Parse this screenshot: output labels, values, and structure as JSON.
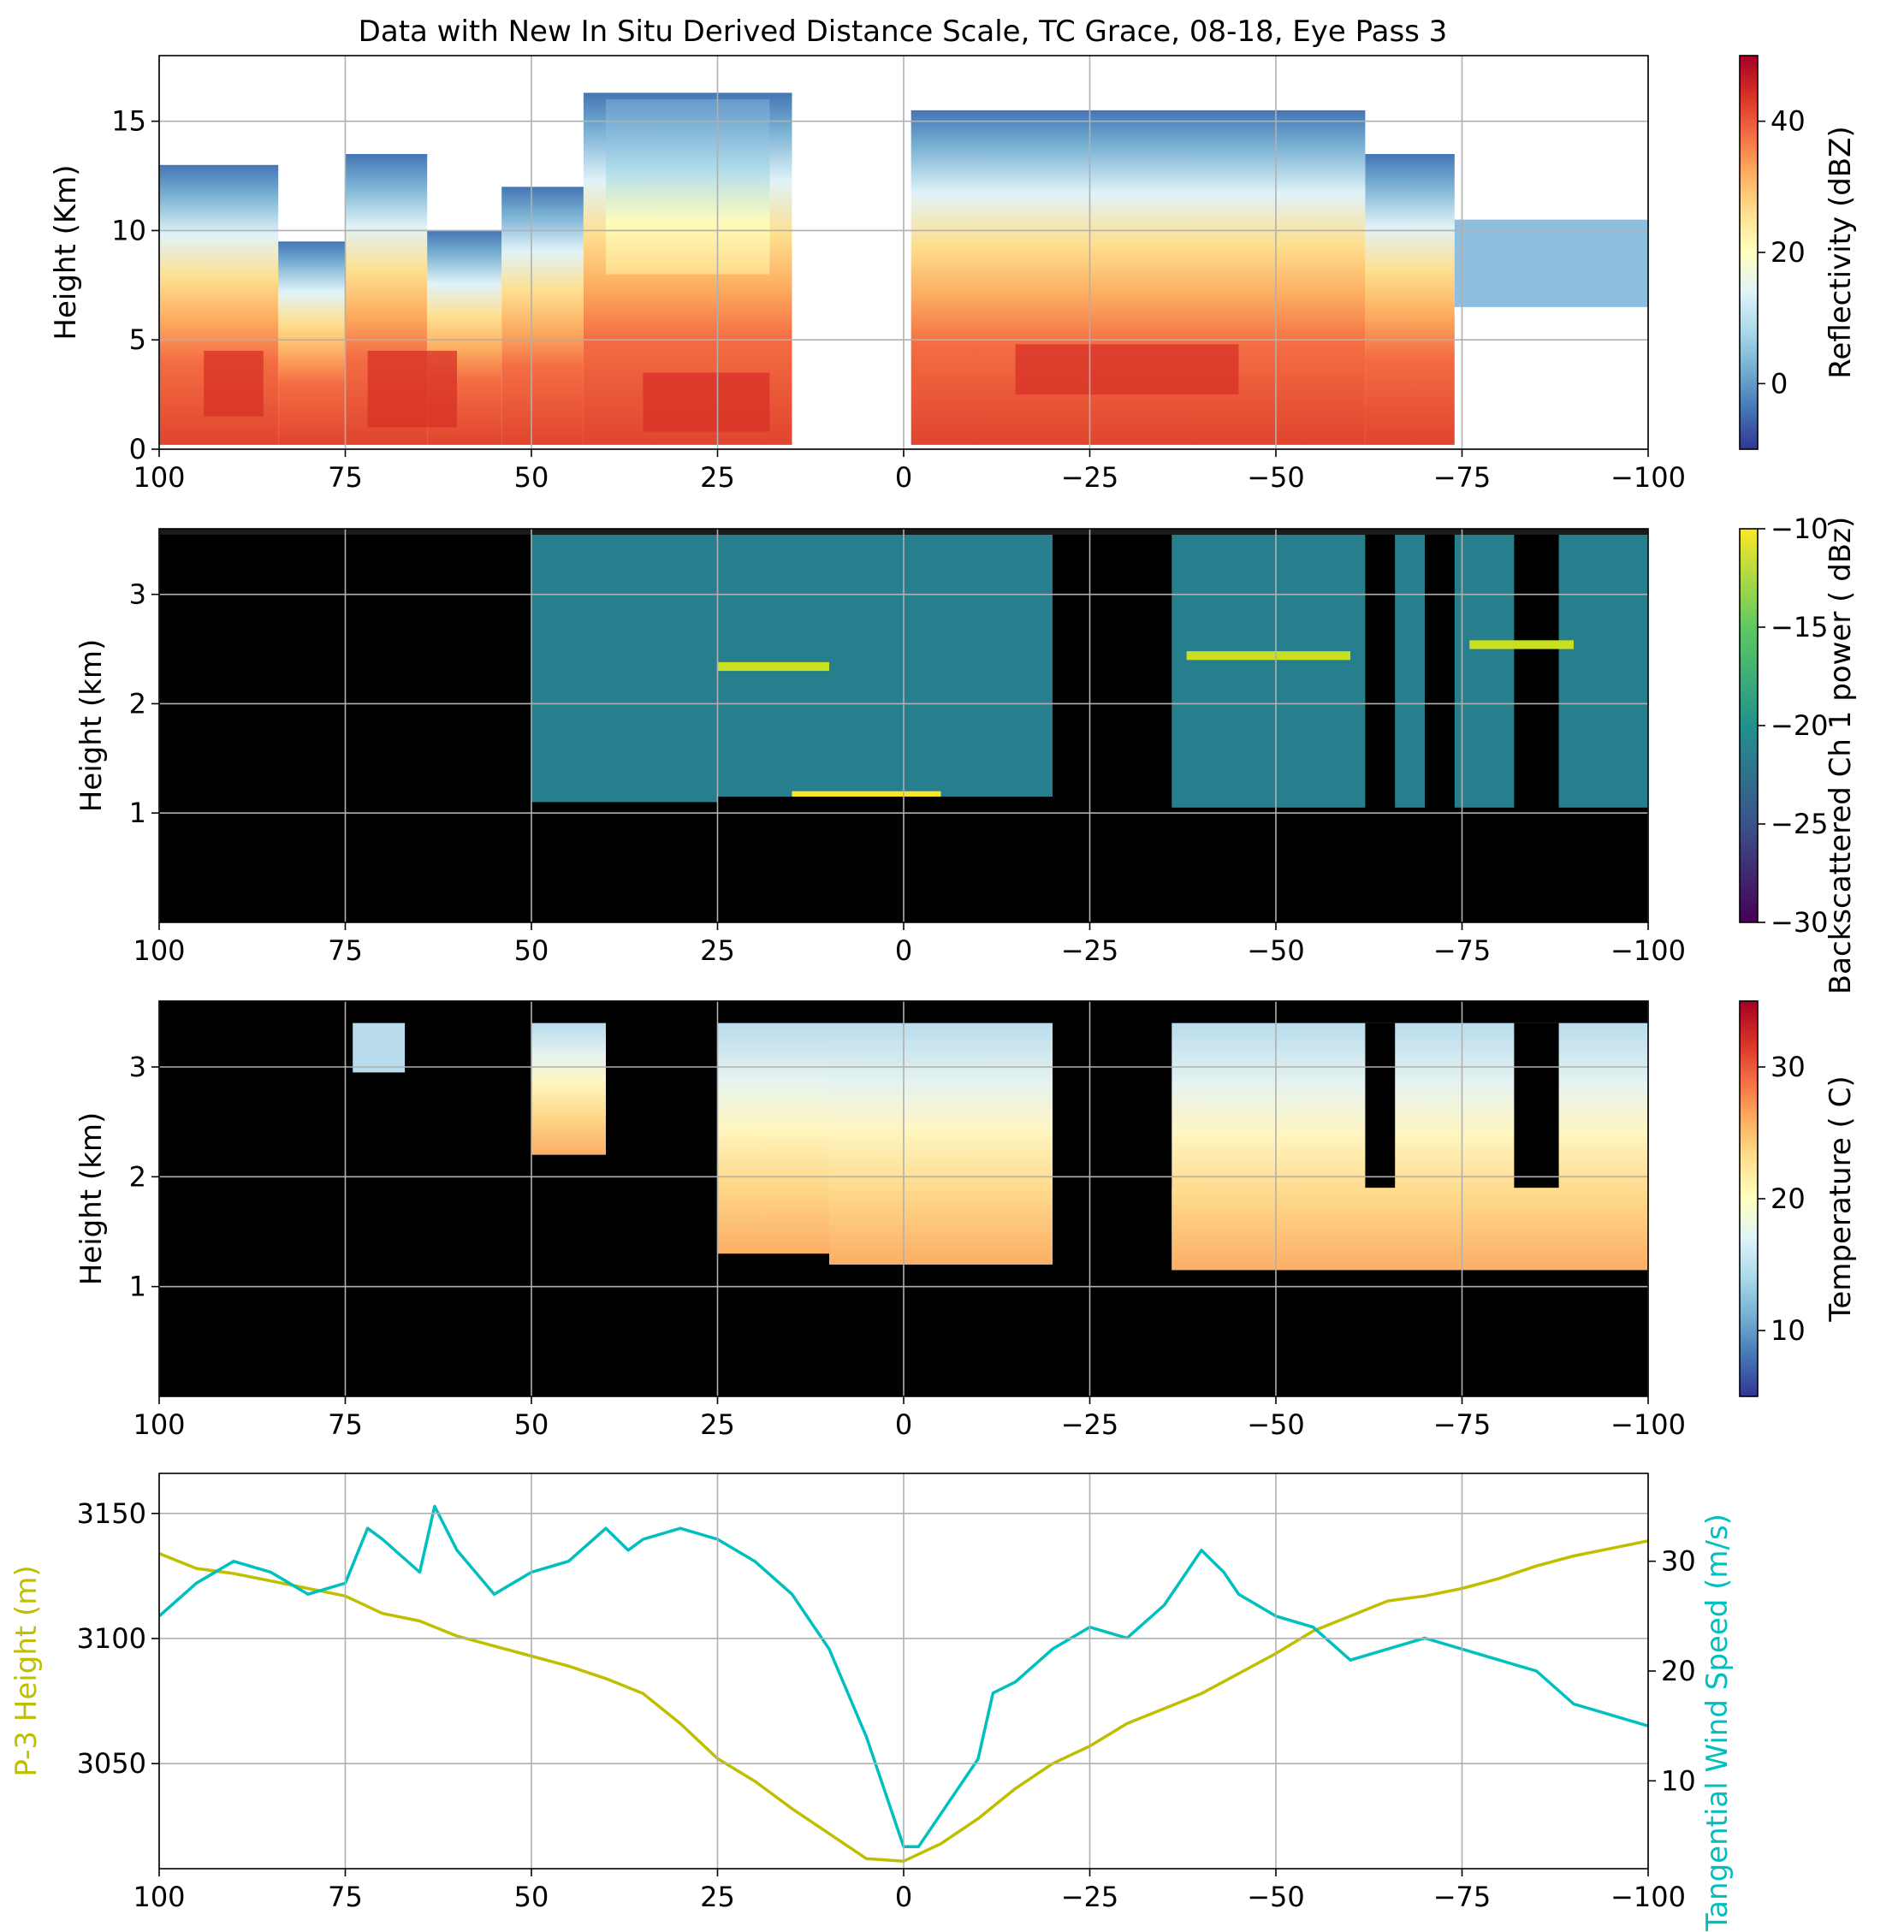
{
  "chart_data": [
    {
      "type": "heatmap",
      "title": "Data with New In Situ Derived Distance Scale, TC Grace, 08-18, Eye Pass 3",
      "ylabel": "Height (Km)",
      "xlim": [
        100,
        -100
      ],
      "ylim": [
        0,
        18
      ],
      "xticks": [
        "100",
        "75",
        "50",
        "25",
        "0",
        "−25",
        "−50",
        "−75",
        "−100"
      ],
      "yticks": [
        "0",
        "5",
        "10",
        "15"
      ],
      "ytick_values": [
        0,
        5,
        10,
        15
      ],
      "colorbar": {
        "label": "Reflectivity (dBZ)",
        "range": [
          -10,
          50
        ],
        "ticks": [
          "0",
          "20",
          "40"
        ],
        "tick_values": [
          0,
          20,
          40
        ],
        "colormap": "RdYlBu_r"
      },
      "grid": true
    },
    {
      "type": "heatmap",
      "ylabel": "Height (km)",
      "xlim": [
        100,
        -100
      ],
      "ylim": [
        0,
        3.6
      ],
      "xticks": [
        "100",
        "75",
        "50",
        "25",
        "0",
        "−25",
        "−50",
        "−75",
        "−100"
      ],
      "yticks": [
        "1",
        "2",
        "3"
      ],
      "ytick_values": [
        1,
        2,
        3
      ],
      "colorbar": {
        "label": "Backscattered Ch 1 power ( dBz)",
        "range": [
          -30,
          -10
        ],
        "ticks": [
          "−30",
          "−25",
          "−20",
          "−15",
          "−10"
        ],
        "tick_values": [
          -30,
          -25,
          -20,
          -15,
          -10
        ],
        "colormap": "viridis"
      },
      "grid": true
    },
    {
      "type": "heatmap",
      "ylabel": "Height (km)",
      "xlim": [
        100,
        -100
      ],
      "ylim": [
        0,
        3.6
      ],
      "xticks": [
        "100",
        "75",
        "50",
        "25",
        "0",
        "−25",
        "−50",
        "−75",
        "−100"
      ],
      "yticks": [
        "1",
        "2",
        "3"
      ],
      "ytick_values": [
        1,
        2,
        3
      ],
      "colorbar": {
        "label": "Temperature ( C)",
        "range": [
          5,
          35
        ],
        "ticks": [
          "10",
          "20",
          "30"
        ],
        "tick_values": [
          10,
          20,
          30
        ],
        "colormap": "RdYlBu_r"
      },
      "grid": true
    },
    {
      "type": "line",
      "xlim": [
        100,
        -100
      ],
      "xticks": [
        "100",
        "75",
        "50",
        "25",
        "0",
        "−25",
        "−50",
        "−75",
        "−100"
      ],
      "ylabel": "P-3 Height (m)",
      "ylim": [
        3008,
        3166
      ],
      "yticks": [
        "3050",
        "3100",
        "3150"
      ],
      "ytick_values": [
        3050,
        3100,
        3150
      ],
      "y2label": "Tangential Wind Speed (m/s)",
      "y2lim": [
        2,
        38
      ],
      "y2ticks": [
        "10",
        "20",
        "30"
      ],
      "y2tick_values": [
        10,
        20,
        30
      ],
      "grid": true,
      "series": [
        {
          "color": "#bfbf00",
          "axis": "left",
          "x": [
            100,
            95,
            90,
            85,
            80,
            75,
            70,
            65,
            60,
            55,
            50,
            45,
            40,
            35,
            30,
            25,
            20,
            15,
            10,
            5,
            0,
            -5,
            -10,
            -15,
            -20,
            -25,
            -30,
            -35,
            -40,
            -45,
            -50,
            -55,
            -60,
            -65,
            -70,
            -75,
            -80,
            -85,
            -90,
            -95,
            -100
          ],
          "y": [
            3134,
            3128,
            3126,
            3123,
            3120,
            3117,
            3110,
            3107,
            3101,
            3097,
            3093,
            3089,
            3084,
            3078,
            3066,
            3052,
            3043,
            3032,
            3022,
            3012,
            3011,
            3018,
            3028,
            3040,
            3050,
            3057,
            3066,
            3072,
            3078,
            3086,
            3094,
            3103,
            3109,
            3115,
            3117,
            3120,
            3124,
            3129,
            3133,
            3136,
            3139
          ]
        },
        {
          "color": "#00bfbf",
          "axis": "right",
          "x": [
            100,
            95,
            90,
            85,
            80,
            75,
            72,
            70,
            65,
            63,
            60,
            55,
            50,
            45,
            40,
            37,
            35,
            30,
            25,
            20,
            15,
            10,
            5,
            0,
            -2,
            -5,
            -10,
            -12,
            -15,
            -20,
            -25,
            -30,
            -35,
            -38,
            -40,
            -43,
            -45,
            -50,
            -55,
            -60,
            -65,
            -70,
            -75,
            -80,
            -85,
            -90,
            -95,
            -100
          ],
          "y": [
            25,
            28,
            30,
            29,
            27,
            28,
            33,
            32,
            29,
            35,
            31,
            27,
            29,
            30,
            33,
            31,
            32,
            33,
            32,
            30,
            27,
            22,
            14,
            4,
            4,
            7,
            12,
            18,
            19,
            22,
            24,
            23,
            26,
            29,
            31,
            29,
            27,
            25,
            24,
            21,
            22,
            23,
            22,
            21,
            20,
            17,
            16,
            15
          ]
        }
      ]
    }
  ]
}
